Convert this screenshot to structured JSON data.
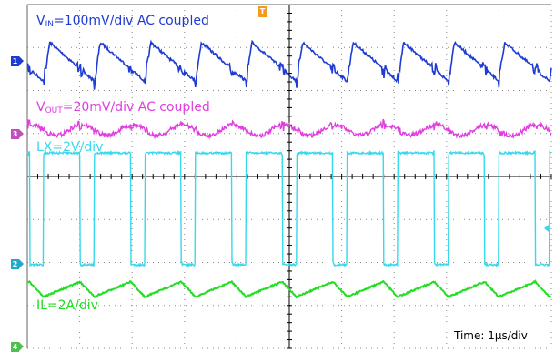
{
  "labels": {
    "vin_prefix": "V",
    "vin_sub": "IN",
    "vin_suffix": "=100mV/div AC coupled",
    "vout_prefix": "V",
    "vout_sub": "OUT",
    "vout_suffix": "=20mV/div AC coupled",
    "lx": "LX=2V/div",
    "il": "IL=2A/div",
    "time": "Time: 1μs/div"
  },
  "markers": {
    "ch1": "1",
    "ch2": "2",
    "ch3": "3",
    "ch4": "4",
    "trigger": "T"
  },
  "colors": {
    "vin": "#1e3cd2",
    "vout": "#e03ee0",
    "lx": "#38d8ec",
    "il": "#22dd22",
    "grid": "#888888",
    "trigger": "#f39a1c"
  },
  "chart_data": {
    "type": "line",
    "title": "",
    "xlabel": "Time: 1μs/div",
    "x_divisions": 10,
    "y_divisions": 8,
    "grid": true,
    "switching_period_divs": 0.965,
    "series": [
      {
        "name": "VIN=100mV/div AC coupled",
        "key": "vin",
        "ripple_pp_divs": 0.9,
        "waveform": "sawtooth-with-spikes"
      },
      {
        "name": "VOUT=20mV/div AC coupled",
        "key": "vout",
        "ripple_pp_divs": 0.25,
        "waveform": "noisy-ripple"
      },
      {
        "name": "LX=2V/div",
        "key": "lx",
        "high_divs": 2.6,
        "duty_cycle": 0.72,
        "waveform": "square"
      },
      {
        "name": "IL=2A/div",
        "key": "il",
        "ripple_pp_divs": 0.35,
        "waveform": "triangle"
      }
    ]
  }
}
